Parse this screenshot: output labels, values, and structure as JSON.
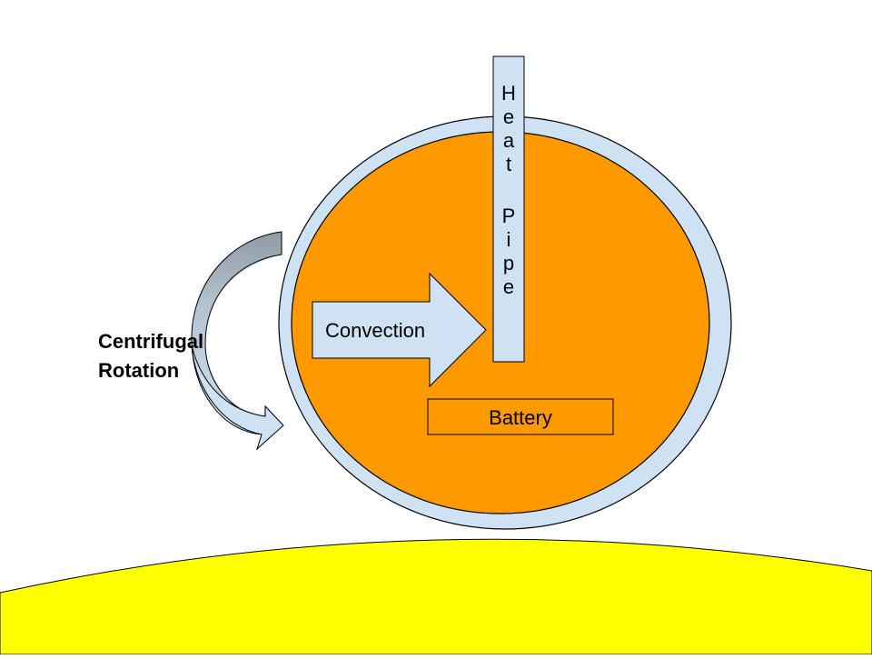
{
  "diagram": {
    "heat_pipe_label": "Heat Pipe",
    "convection_label": "Convection",
    "battery_label": "Battery",
    "rotation_label": "Centrifugal\nRotation"
  },
  "colors": {
    "ground": "#ffff00",
    "outer_shell": "#cfe2f3",
    "core": "#ff9900",
    "arrow_fill": "#cfe2f3",
    "curved_arrow_dark": "#9aa7b2",
    "outline": "#000000"
  }
}
